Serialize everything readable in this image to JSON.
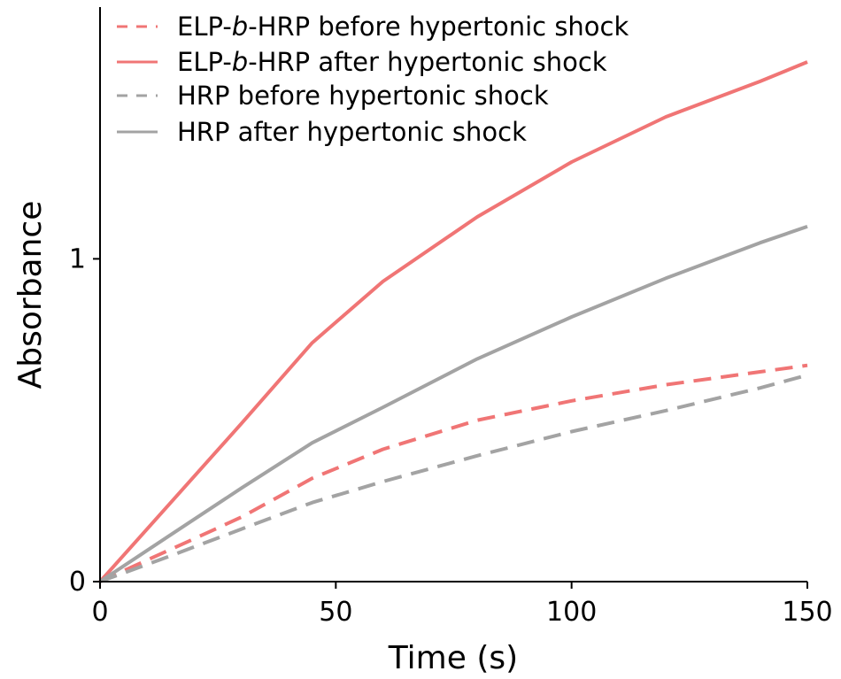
{
  "chart_data": {
    "type": "line",
    "xlabel": "Time (s)",
    "ylabel": "Absorbance",
    "xlim": [
      0,
      150
    ],
    "ylim": [
      0,
      1.78
    ],
    "xticks": [
      0,
      50,
      100,
      150
    ],
    "yticks": [
      0,
      1
    ],
    "grid": false,
    "legend_position": "top-left",
    "legend_entries": [
      {
        "parts": [
          [
            "ELP-",
            false
          ],
          [
            "b",
            true
          ],
          [
            "-HRP before hypertonic shock",
            false
          ]
        ]
      },
      {
        "parts": [
          [
            "ELP-",
            false
          ],
          [
            "b",
            true
          ],
          [
            "-HRP after hypertonic shock",
            false
          ]
        ]
      },
      {
        "parts": [
          [
            "HRP before hypertonic shock",
            false
          ]
        ]
      },
      {
        "parts": [
          [
            "HRP after hypertonic shock",
            false
          ]
        ]
      }
    ],
    "series": [
      {
        "name": "ELP-b-HRP before hypertonic shock",
        "color": "#f07575",
        "dash": "dashed",
        "x": [
          0,
          10,
          20,
          30,
          45,
          60,
          80,
          100,
          120,
          140,
          150
        ],
        "y": [
          0,
          0.067,
          0.133,
          0.2,
          0.32,
          0.41,
          0.5,
          0.56,
          0.61,
          0.65,
          0.67
        ]
      },
      {
        "name": "ELP-b-HRP after hypertonic shock",
        "color": "#f07575",
        "dash": "solid",
        "x": [
          0,
          15,
          30,
          45,
          60,
          80,
          100,
          120,
          140,
          150
        ],
        "y": [
          0,
          0.245,
          0.49,
          0.74,
          0.93,
          1.13,
          1.3,
          1.44,
          1.55,
          1.61
        ]
      },
      {
        "name": "HRP before hypertonic shock",
        "color": "#a3a3a3",
        "dash": "dashed",
        "x": [
          0,
          15,
          30,
          45,
          60,
          80,
          100,
          120,
          140,
          150
        ],
        "y": [
          0,
          0.08,
          0.163,
          0.245,
          0.31,
          0.39,
          0.465,
          0.53,
          0.6,
          0.64
        ]
      },
      {
        "name": "HRP after hypertonic shock",
        "color": "#a3a3a3",
        "dash": "solid",
        "x": [
          0,
          15,
          30,
          45,
          60,
          80,
          100,
          120,
          140,
          150
        ],
        "y": [
          0,
          0.145,
          0.29,
          0.43,
          0.54,
          0.69,
          0.82,
          0.94,
          1.05,
          1.1
        ]
      }
    ]
  }
}
